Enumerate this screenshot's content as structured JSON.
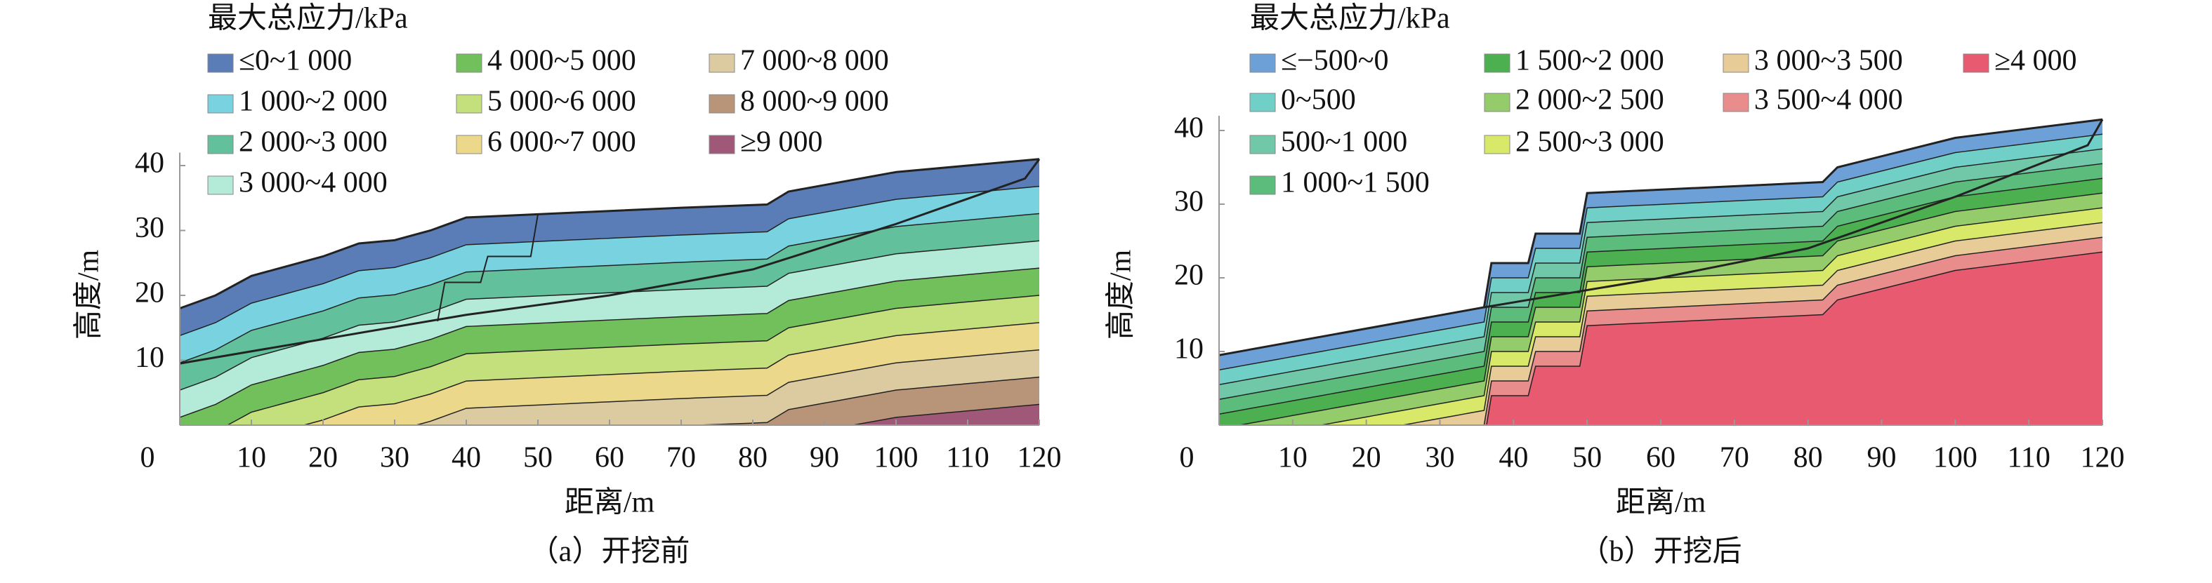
{
  "chart_data": [
    {
      "type": "contour",
      "legend_title": "最大总应力/kPa",
      "series": [
        {
          "name": "≤0~1 000",
          "color": "#5a7db8"
        },
        {
          "name": "1 000~2 000",
          "color": "#78d2e0"
        },
        {
          "name": "2 000~3 000",
          "color": "#62c09c"
        },
        {
          "name": "3 000~4 000",
          "color": "#b4ead8"
        },
        {
          "name": "4 000~5 000",
          "color": "#72c05c"
        },
        {
          "name": "5 000~6 000",
          "color": "#c4e07c"
        },
        {
          "name": "6 000~7 000",
          "color": "#ecd88a"
        },
        {
          "name": "7 000~8 000",
          "color": "#dccaa0"
        },
        {
          "name": "8 000~9 000",
          "color": "#b89478"
        },
        {
          "name": "≥9 000",
          "color": "#a05878"
        }
      ],
      "xlabel": "距离/m",
      "ylabel": "高度/m",
      "caption": "（a）开挖前",
      "xlim": [
        0,
        120
      ],
      "ylim": [
        0,
        42
      ],
      "xticks": [
        0,
        10,
        20,
        30,
        40,
        50,
        60,
        70,
        80,
        90,
        100,
        110,
        120
      ],
      "yticks": [
        10,
        20,
        30,
        40
      ]
    },
    {
      "type": "contour",
      "legend_title": "最大总应力/kPa",
      "series": [
        {
          "name": "≤−500~0",
          "color": "#6ea0d8"
        },
        {
          "name": "0~500",
          "color": "#70d0c8"
        },
        {
          "name": "500~1 000",
          "color": "#70c8a8"
        },
        {
          "name": "1 000~1 500",
          "color": "#5cbc7c"
        },
        {
          "name": "1 500~2 000",
          "color": "#4cb050"
        },
        {
          "name": "2 000~2 500",
          "color": "#94cc6c"
        },
        {
          "name": "2 500~3 000",
          "color": "#d8e868"
        },
        {
          "name": "3 000~3 500",
          "color": "#e8cc98"
        },
        {
          "name": "3 500~4 000",
          "color": "#e88c8c"
        },
        {
          "name": "≥4 000",
          "color": "#e85a70"
        }
      ],
      "xlabel": "距离/m",
      "ylabel": "高度/m",
      "caption": "（b）开挖后",
      "xlim": [
        0,
        120
      ],
      "ylim": [
        0,
        42
      ],
      "xticks": [
        0,
        10,
        20,
        30,
        40,
        50,
        60,
        70,
        80,
        90,
        100,
        110,
        120
      ],
      "yticks": [
        10,
        20,
        30,
        40
      ]
    }
  ]
}
